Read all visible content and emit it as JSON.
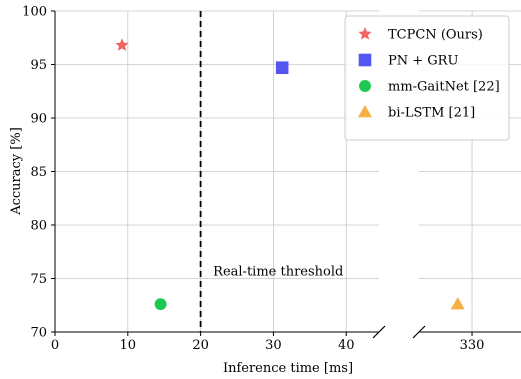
{
  "chart_data": {
    "type": "scatter",
    "title": "",
    "xlabel": "Inference time [ms]",
    "ylabel": "Accuracy [%]",
    "x_axis": {
      "broken": true,
      "segments": [
        {
          "xlim": [
            0,
            44.5
          ],
          "ticks": [
            0,
            10,
            20,
            30,
            40
          ],
          "tick_labels": [
            "0",
            "10",
            "20",
            "30",
            "40"
          ]
        },
        {
          "xlim": [
            317,
            342
          ],
          "ticks": [
            330
          ],
          "tick_labels": [
            "330"
          ]
        }
      ]
    },
    "ylim": [
      70,
      100
    ],
    "y_ticks": [
      70,
      75,
      80,
      85,
      90,
      95,
      100
    ],
    "y_tick_labels": [
      "70",
      "75",
      "80",
      "85",
      "90",
      "95",
      "100"
    ],
    "grid": true,
    "legend_position": "top-right",
    "series": [
      {
        "name": "TCPCN (Ours)",
        "marker": "star",
        "color": "#f26464",
        "points": [
          {
            "x": 9.2,
            "y": 96.8
          }
        ]
      },
      {
        "name": "PN + GRU",
        "marker": "square",
        "color": "#5555f2",
        "points": [
          {
            "x": 31.2,
            "y": 94.7
          }
        ]
      },
      {
        "name": "mm-GaitNet [22]",
        "marker": "circle",
        "color": "#1cc84f",
        "points": [
          {
            "x": 14.5,
            "y": 72.6
          }
        ]
      },
      {
        "name": "bi-LSTM [21]",
        "marker": "triangle",
        "color": "#f7b045",
        "points": [
          {
            "x": 326.5,
            "y": 72.6
          }
        ]
      }
    ],
    "annotations": [
      {
        "type": "vline",
        "x": 20,
        "style": "dashed",
        "color": "#000000"
      },
      {
        "type": "text",
        "text": "Real-time threshold",
        "x": 22,
        "y": 75.3
      }
    ]
  }
}
